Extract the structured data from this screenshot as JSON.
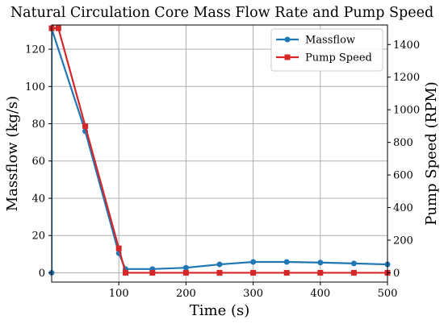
{
  "chart_data": {
    "type": "line",
    "title": "Natural Circulation Core Mass Flow Rate and Pump Speed",
    "xlabel": "Time (s)",
    "ylabel": "Massflow (kg/s)",
    "y2label": "Pump Speed (RPM)",
    "xlim": [
      0,
      500
    ],
    "ylim": [
      -5,
      133
    ],
    "y2lim": [
      -57.1,
      1520
    ],
    "x_ticks": [
      100,
      200,
      300,
      400,
      500
    ],
    "y_ticks": [
      0,
      20,
      40,
      60,
      80,
      100,
      120
    ],
    "y2_ticks": [
      0,
      200,
      400,
      600,
      800,
      1000,
      1200,
      1400
    ],
    "grid": true,
    "legend_position": "top-right",
    "series": [
      {
        "name": "Massflow",
        "axis": "left",
        "color": "#1f77b4",
        "marker": "circle",
        "x": [
          0,
          0,
          50,
          100,
          110,
          150,
          200,
          250,
          300,
          350,
          400,
          450,
          500
        ],
        "y": [
          0,
          131,
          76,
          10.5,
          2,
          2,
          2.7,
          4.5,
          5.8,
          5.8,
          5.5,
          5.0,
          4.5
        ]
      },
      {
        "name": "Pump Speed",
        "axis": "right",
        "color": "#d62728",
        "marker": "square",
        "x": [
          0,
          10,
          50,
          100,
          110,
          150,
          200,
          250,
          300,
          350,
          400,
          450,
          500
        ],
        "y": [
          1500,
          1500,
          900,
          150,
          0,
          0,
          0,
          0,
          0,
          0,
          0,
          0,
          0
        ]
      }
    ]
  }
}
